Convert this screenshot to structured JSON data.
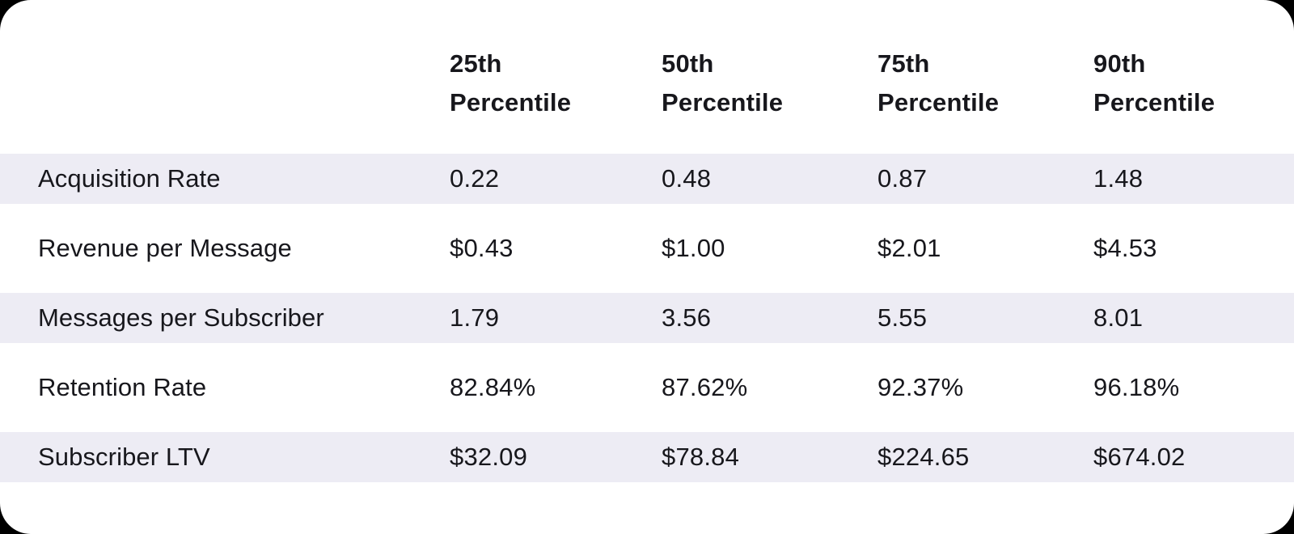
{
  "chart_data": {
    "type": "table",
    "title": "",
    "corner_label": "",
    "columns": [
      {
        "line1": "25th",
        "line2": "Percentile"
      },
      {
        "line1": "50th",
        "line2": "Percentile"
      },
      {
        "line1": "75th",
        "line2": "Percentile"
      },
      {
        "line1": "90th",
        "line2": "Percentile"
      }
    ],
    "rows": [
      {
        "label": "Acquisition Rate",
        "values": [
          "0.22",
          "0.48",
          "0.87",
          "1.48"
        ]
      },
      {
        "label": "Revenue per Message",
        "values": [
          "$0.43",
          "$1.00",
          "$2.01",
          "$4.53"
        ]
      },
      {
        "label": "Messages per Subscriber",
        "values": [
          "1.79",
          "3.56",
          "5.55",
          "8.01"
        ]
      },
      {
        "label": "Retention Rate",
        "values": [
          "82.84%",
          "87.62%",
          "92.37%",
          "96.18%"
        ]
      },
      {
        "label": "Subscriber LTV",
        "values": [
          "$32.09",
          "$78.84",
          "$224.65",
          "$674.02"
        ]
      }
    ],
    "layout": {
      "striped_row_indices": [
        0,
        2,
        4
      ],
      "stripe_color": "#EDECF4",
      "card_color": "#FFFFFF",
      "page_background": "#000000",
      "text_color": "#17171C"
    }
  }
}
